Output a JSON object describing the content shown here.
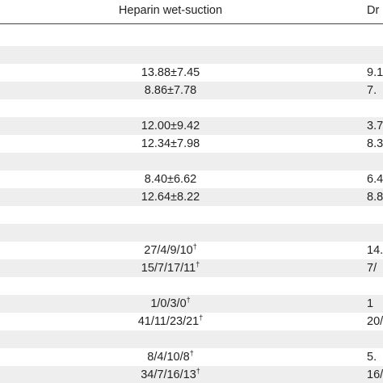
{
  "header": {
    "heparin": "Heparin wet-suction",
    "dry": "Dr"
  },
  "rows": [
    null,
    null,
    {
      "heparin": "13.88±7.45",
      "dry": "9.1"
    },
    {
      "heparin": "8.86±7.78",
      "dry": "7."
    },
    null,
    {
      "heparin": "12.00±9.42",
      "dry": "3.7"
    },
    {
      "heparin": "12.34±7.98",
      "dry": "8.3"
    },
    null,
    {
      "heparin": "8.40±6.62",
      "dry": "6.4"
    },
    {
      "heparin": "12.64±8.22",
      "dry": "8.8"
    },
    null,
    null,
    {
      "heparin": "27/4/9/10",
      "heparin_note": "†",
      "dry": "14."
    },
    {
      "heparin": "15/7/17/11",
      "heparin_note": "†",
      "dry": "7/"
    },
    null,
    {
      "heparin": "1/0/3/0",
      "heparin_note": "†",
      "dry": "1"
    },
    {
      "heparin": "41/11/23/21",
      "heparin_note": "†",
      "dry": "20/"
    },
    null,
    {
      "heparin": "8/4/10/8",
      "heparin_note": "†",
      "dry": "5."
    },
    {
      "heparin": "34/7/16/13",
      "heparin_note": "†",
      "dry": "16/"
    }
  ]
}
